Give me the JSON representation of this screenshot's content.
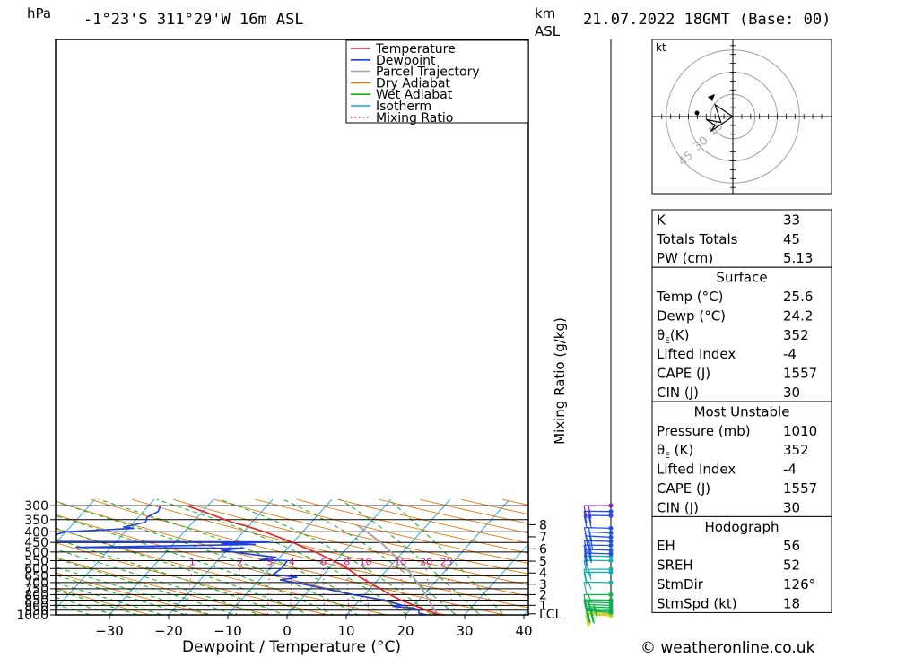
{
  "header": {
    "location": "-1°23'S 311°29'W 16m ASL",
    "datetime": "21.07.2022 18GMT (Base: 00)",
    "left_unit": "hPa",
    "right_unit_km": "km",
    "right_unit_asl": "ASL"
  },
  "footer": {
    "copyright": "© weatheronline.co.uk"
  },
  "chart_data": {
    "type": "skew-t",
    "xlabel": "Dewpoint / Temperature (°C)",
    "ylabel_right": "Mixing Ratio (g/kg)",
    "x_ticks": [
      -30,
      -20,
      -10,
      0,
      10,
      20,
      30,
      40
    ],
    "pressure_levels": [
      300,
      350,
      400,
      450,
      500,
      550,
      600,
      650,
      700,
      750,
      800,
      850,
      900,
      950,
      1000
    ],
    "height_km_ticks": [
      {
        "km": "8",
        "p": 370
      },
      {
        "km": "7",
        "p": 423
      },
      {
        "km": "6",
        "p": 483
      },
      {
        "km": "5",
        "p": 553
      },
      {
        "km": "4",
        "p": 630
      },
      {
        "km": "3",
        "p": 713
      },
      {
        "km": "2",
        "p": 800
      },
      {
        "km": "1",
        "p": 900
      },
      {
        "km": "LCL",
        "p": 988
      }
    ],
    "mixing_ratio_labels": [
      "1",
      "2",
      "3",
      "4",
      "6",
      "8",
      "10",
      "15",
      "20",
      "25"
    ],
    "legend": [
      "Temperature",
      "Dewpoint",
      "Parcel Trajectory",
      "Dry Adiabat",
      "Wet Adiabat",
      "Isotherm",
      "Mixing Ratio"
    ],
    "series": {
      "temperature": [
        [
          1010,
          26.2
        ],
        [
          1000,
          25.6
        ],
        [
          950,
          22.8
        ],
        [
          900,
          20.0
        ],
        [
          850,
          17.0
        ],
        [
          800,
          14.3
        ],
        [
          750,
          11.8
        ],
        [
          700,
          9.0
        ],
        [
          650,
          6.0
        ],
        [
          600,
          3.2
        ],
        [
          580,
          2.0
        ],
        [
          550,
          -0.5
        ],
        [
          520,
          -3.0
        ],
        [
          500,
          -4.8
        ],
        [
          470,
          -8.0
        ],
        [
          450,
          -10.0
        ],
        [
          420,
          -13.8
        ],
        [
          400,
          -16.5
        ],
        [
          375,
          -20.5
        ],
        [
          365,
          -22.5
        ],
        [
          350,
          -25.0
        ],
        [
          325,
          -29.0
        ],
        [
          300,
          -33.5
        ]
      ],
      "dewpoint": [
        [
          1010,
          23.8
        ],
        [
          1000,
          23.5
        ],
        [
          980,
          22.0
        ],
        [
          950,
          21.5
        ],
        [
          930,
          20.5
        ],
        [
          910,
          16.5
        ],
        [
          900,
          18.0
        ],
        [
          850,
          14.3
        ],
        [
          800,
          8.0
        ],
        [
          750,
          2.5
        ],
        [
          700,
          -3.5
        ],
        [
          680,
          -6.5
        ],
        [
          660,
          -4.0
        ],
        [
          640,
          -8.5
        ],
        [
          600,
          -8.0
        ],
        [
          550,
          -8.2
        ],
        [
          545,
          -13.0
        ],
        [
          530,
          -10.5
        ],
        [
          510,
          -16.0
        ],
        [
          490,
          -21.0
        ],
        [
          480,
          -17.5
        ],
        [
          475,
          -46.0
        ],
        [
          460,
          -16.0
        ],
        [
          455,
          -22.0
        ],
        [
          448,
          -14.0
        ],
        [
          445,
          -53.0
        ],
        [
          430,
          -55.5
        ],
        [
          420,
          -52.0
        ],
        [
          400,
          -50.0
        ],
        [
          385,
          -39.0
        ],
        [
          380,
          -41.0
        ],
        [
          360,
          -38.0
        ],
        [
          340,
          -38.5
        ],
        [
          320,
          -37.5
        ],
        [
          300,
          -38.0
        ]
      ],
      "parcel": [
        [
          1000,
          25.6
        ],
        [
          950,
          24.2
        ],
        [
          900,
          23.0
        ],
        [
          850,
          21.7
        ],
        [
          800,
          20.3
        ],
        [
          750,
          18.8
        ],
        [
          700,
          17.1
        ],
        [
          650,
          15.2
        ],
        [
          600,
          13.2
        ],
        [
          550,
          10.8
        ],
        [
          500,
          8.0
        ],
        [
          450,
          4.8
        ],
        [
          400,
          0.8
        ],
        [
          370,
          -2.0
        ]
      ]
    },
    "wind_barbs": [
      {
        "p": 1010,
        "dir": 110,
        "spd": 10
      },
      {
        "p": 1000,
        "dir": 115,
        "spd": 15
      },
      {
        "p": 990,
        "dir": 120,
        "spd": 15
      },
      {
        "p": 975,
        "dir": 120,
        "spd": 20
      },
      {
        "p": 960,
        "dir": 115,
        "spd": 25
      },
      {
        "p": 945,
        "dir": 115,
        "spd": 25
      },
      {
        "p": 925,
        "dir": 110,
        "spd": 25
      },
      {
        "p": 900,
        "dir": 105,
        "spd": 25
      },
      {
        "p": 875,
        "dir": 100,
        "spd": 20
      },
      {
        "p": 855,
        "dir": 95,
        "spd": 20
      },
      {
        "p": 850,
        "dir": 95,
        "spd": 20
      },
      {
        "p": 800,
        "dir": 90,
        "spd": 15
      },
      {
        "p": 700,
        "dir": 95,
        "spd": 15
      },
      {
        "p": 625,
        "dir": 90,
        "spd": 15
      },
      {
        "p": 605,
        "dir": 90,
        "spd": 15
      },
      {
        "p": 550,
        "dir": 95,
        "spd": 10
      },
      {
        "p": 525,
        "dir": 100,
        "spd": 15
      },
      {
        "p": 510,
        "dir": 100,
        "spd": 15
      },
      {
        "p": 490,
        "dir": 100,
        "spd": 20
      },
      {
        "p": 465,
        "dir": 95,
        "spd": 20
      },
      {
        "p": 445,
        "dir": 100,
        "spd": 20
      },
      {
        "p": 425,
        "dir": 110,
        "spd": 20
      },
      {
        "p": 405,
        "dir": 105,
        "spd": 20
      },
      {
        "p": 385,
        "dir": 100,
        "spd": 20
      },
      {
        "p": 335,
        "dir": 95,
        "spd": 20
      },
      {
        "p": 320,
        "dir": 95,
        "spd": 20
      },
      {
        "p": 300,
        "dir": 90,
        "spd": 20
      }
    ],
    "hodograph": {
      "unit": "kt",
      "ring_labels": [
        "15",
        "30",
        "45"
      ],
      "trace": [
        [
          0,
          0
        ],
        [
          -12,
          -8
        ],
        [
          -8,
          4
        ],
        [
          -18,
          2
        ],
        [
          -12,
          6
        ],
        [
          -15,
          10
        ],
        [
          0,
          0
        ]
      ]
    }
  },
  "indices": {
    "top": [
      {
        "label": "K",
        "value": "33"
      },
      {
        "label": "Totals Totals",
        "value": "45"
      },
      {
        "label": "PW (cm)",
        "value": "5.13"
      }
    ],
    "surface": {
      "title": "Surface",
      "rows": [
        {
          "label": "Temp (°C)",
          "value": "25.6"
        },
        {
          "label": "Dewp (°C)",
          "value": "24.2"
        },
        {
          "label": "θE(K)",
          "value": "352"
        },
        {
          "label": "Lifted Index",
          "value": "-4"
        },
        {
          "label": "CAPE (J)",
          "value": "1557"
        },
        {
          "label": "CIN (J)",
          "value": "30"
        }
      ]
    },
    "most_unstable": {
      "title": "Most Unstable",
      "rows": [
        {
          "label": "Pressure (mb)",
          "value": "1010"
        },
        {
          "label": "θE (K)",
          "value": "352"
        },
        {
          "label": "Lifted Index",
          "value": "-4"
        },
        {
          "label": "CAPE (J)",
          "value": "1557"
        },
        {
          "label": "CIN (J)",
          "value": "30"
        }
      ]
    },
    "hodograph": {
      "title": "Hodograph",
      "rows": [
        {
          "label": "EH",
          "value": "56"
        },
        {
          "label": "SREH",
          "value": "52"
        },
        {
          "label": "StmDir",
          "value": "126°"
        },
        {
          "label": "StmSpd (kt)",
          "value": "18"
        }
      ]
    }
  },
  "colors": {
    "temperature": "#e02020",
    "dewpoint": "#1f3fd8",
    "parcel": "#a6a6a6",
    "dry_adiabat": "#e07a10",
    "wet_adiabat": "#14b014",
    "isotherm": "#14a0e0",
    "mixing_ratio": "#d01090"
  }
}
